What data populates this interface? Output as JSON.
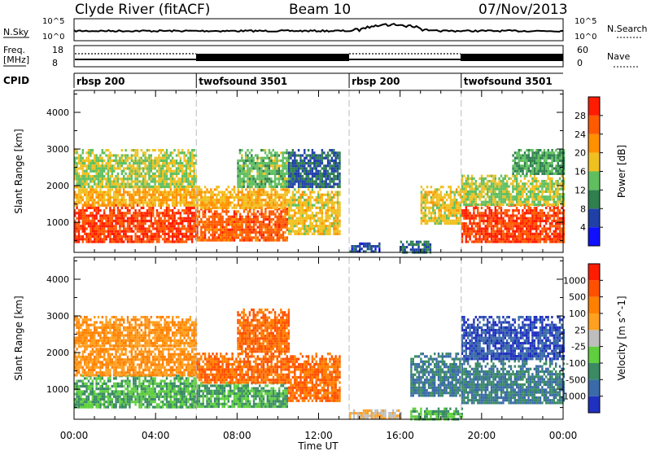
{
  "header": {
    "station": "Clyde River (fitACF)",
    "beam": "Beam 10",
    "date": "07/Nov/2013"
  },
  "strips": {
    "nsky_label": "N.Sky",
    "nsky_ticks": [
      "10^5",
      "10^0"
    ],
    "nsearch_label": "N.Search",
    "nsearch_ticks": [
      "10^5",
      "10^0"
    ],
    "freq_label_line1": "Freq.",
    "freq_label_line2": "[MHz]",
    "freq_ticks": [
      "18",
      "8"
    ],
    "nave_label": "Nave",
    "nave_ticks": [
      "60",
      "0"
    ],
    "cpid_label": "CPID"
  },
  "cpid_segments": [
    {
      "name": "rbsp 200",
      "start": "00:00",
      "end": "06:00"
    },
    {
      "name": "twofsound 3501",
      "start": "06:00",
      "end": "13:30"
    },
    {
      "name": "rbsp 200",
      "start": "13:30",
      "end": "19:00"
    },
    {
      "name": "twofsound 3501",
      "start": "19:00",
      "end": "24:00"
    }
  ],
  "chart_data": [
    {
      "type": "heatmap",
      "quantity": "Power",
      "ylabel": "Slant Range [km]",
      "ylim": [
        180,
        4600
      ],
      "yticks": [
        "1000",
        "2000",
        "3000",
        "4000"
      ],
      "colorbar_label": "Power [dB]",
      "colorbar_ticks": [
        "4",
        "8",
        "12",
        "16",
        "20",
        "24",
        "28"
      ],
      "colorbar_colors": [
        "#1010ff",
        "#2040a8",
        "#2f7f4f",
        "#5fbf5f",
        "#f0c020",
        "#ff9000",
        "#ff5a00",
        "#ff1c00"
      ],
      "colorbar_range": [
        0,
        32
      ],
      "regions": [
        {
          "t0": 0.0,
          "t1": 6.0,
          "r0": 500,
          "r1": 1500,
          "level": 28
        },
        {
          "t0": 0.0,
          "t1": 6.0,
          "r0": 1500,
          "r1": 2000,
          "level": 20
        },
        {
          "t0": 0.0,
          "t1": 6.0,
          "r0": 2000,
          "r1": 3000,
          "level": 16
        },
        {
          "t0": 6.0,
          "t1": 10.5,
          "r0": 500,
          "r1": 1400,
          "level": 26
        },
        {
          "t0": 6.0,
          "t1": 10.5,
          "r0": 1400,
          "r1": 2000,
          "level": 20
        },
        {
          "t0": 8.0,
          "t1": 10.5,
          "r0": 2000,
          "r1": 3000,
          "level": 14
        },
        {
          "t0": 10.5,
          "t1": 13.0,
          "r0": 700,
          "r1": 2000,
          "level": 18
        },
        {
          "t0": 10.5,
          "t1": 13.0,
          "r0": 2000,
          "r1": 3000,
          "level": 8
        },
        {
          "t0": 13.5,
          "t1": 15.0,
          "r0": 200,
          "r1": 450,
          "level": 6
        },
        {
          "t0": 16.0,
          "t1": 17.5,
          "r0": 200,
          "r1": 500,
          "level": 8
        },
        {
          "t0": 17.0,
          "t1": 19.0,
          "r0": 1000,
          "r1": 2000,
          "level": 18
        },
        {
          "t0": 19.0,
          "t1": 24.0,
          "r0": 500,
          "r1": 1500,
          "level": 28
        },
        {
          "t0": 19.0,
          "t1": 24.0,
          "r0": 1500,
          "r1": 2300,
          "level": 16
        },
        {
          "t0": 21.5,
          "t1": 24.0,
          "r0": 2300,
          "r1": 3000,
          "level": 12
        }
      ]
    },
    {
      "type": "heatmap",
      "quantity": "Velocity",
      "ylabel": "Slant Range [km]",
      "ylim": [
        180,
        4600
      ],
      "yticks": [
        "1000",
        "2000",
        "3000",
        "4000"
      ],
      "colorbar_label": "Velocity [m s^-1]",
      "colorbar_ticks": [
        "1000",
        "500",
        "100",
        "25",
        "-25",
        "-100",
        "-500",
        "-1000"
      ],
      "colorbar_colors": [
        "#2030c0",
        "#3a6aa8",
        "#3a8a64",
        "#5fcf3f",
        "#bebebe",
        "#ffa020",
        "#ff8000",
        "#ff5000",
        "#ff1c00"
      ],
      "colorbar_range": [
        0,
        9
      ],
      "regions": [
        {
          "t0": 0.0,
          "t1": 6.0,
          "r0": 500,
          "r1": 1400,
          "level": 3
        },
        {
          "t0": 0.0,
          "t1": 6.0,
          "r0": 1400,
          "r1": 2200,
          "level": 6
        },
        {
          "t0": 0.0,
          "t1": 6.0,
          "r0": 2200,
          "r1": 3000,
          "level": 6
        },
        {
          "t0": 6.0,
          "t1": 10.5,
          "r0": 500,
          "r1": 1200,
          "level": 3
        },
        {
          "t0": 6.0,
          "t1": 10.5,
          "r0": 1200,
          "r1": 2000,
          "level": 7
        },
        {
          "t0": 8.0,
          "t1": 10.5,
          "r0": 2000,
          "r1": 3200,
          "level": 7
        },
        {
          "t0": 10.5,
          "t1": 13.0,
          "r0": 700,
          "r1": 2000,
          "level": 7
        },
        {
          "t0": 13.5,
          "t1": 16.0,
          "r0": 200,
          "r1": 450,
          "level": 5
        },
        {
          "t0": 16.5,
          "t1": 19.0,
          "r0": 800,
          "r1": 2000,
          "level": 2
        },
        {
          "t0": 16.5,
          "t1": 19.0,
          "r0": 200,
          "r1": 500,
          "level": 3
        },
        {
          "t0": 19.0,
          "t1": 24.0,
          "r0": 600,
          "r1": 1800,
          "level": 2
        },
        {
          "t0": 19.0,
          "t1": 24.0,
          "r0": 1800,
          "r1": 3000,
          "level": 1
        }
      ]
    }
  ],
  "xaxis": {
    "label": "Time UT",
    "ticks": [
      "00:00",
      "04:00",
      "08:00",
      "12:00",
      "16:00",
      "20:00",
      "00:00"
    ],
    "range_hours": [
      0,
      24
    ]
  }
}
